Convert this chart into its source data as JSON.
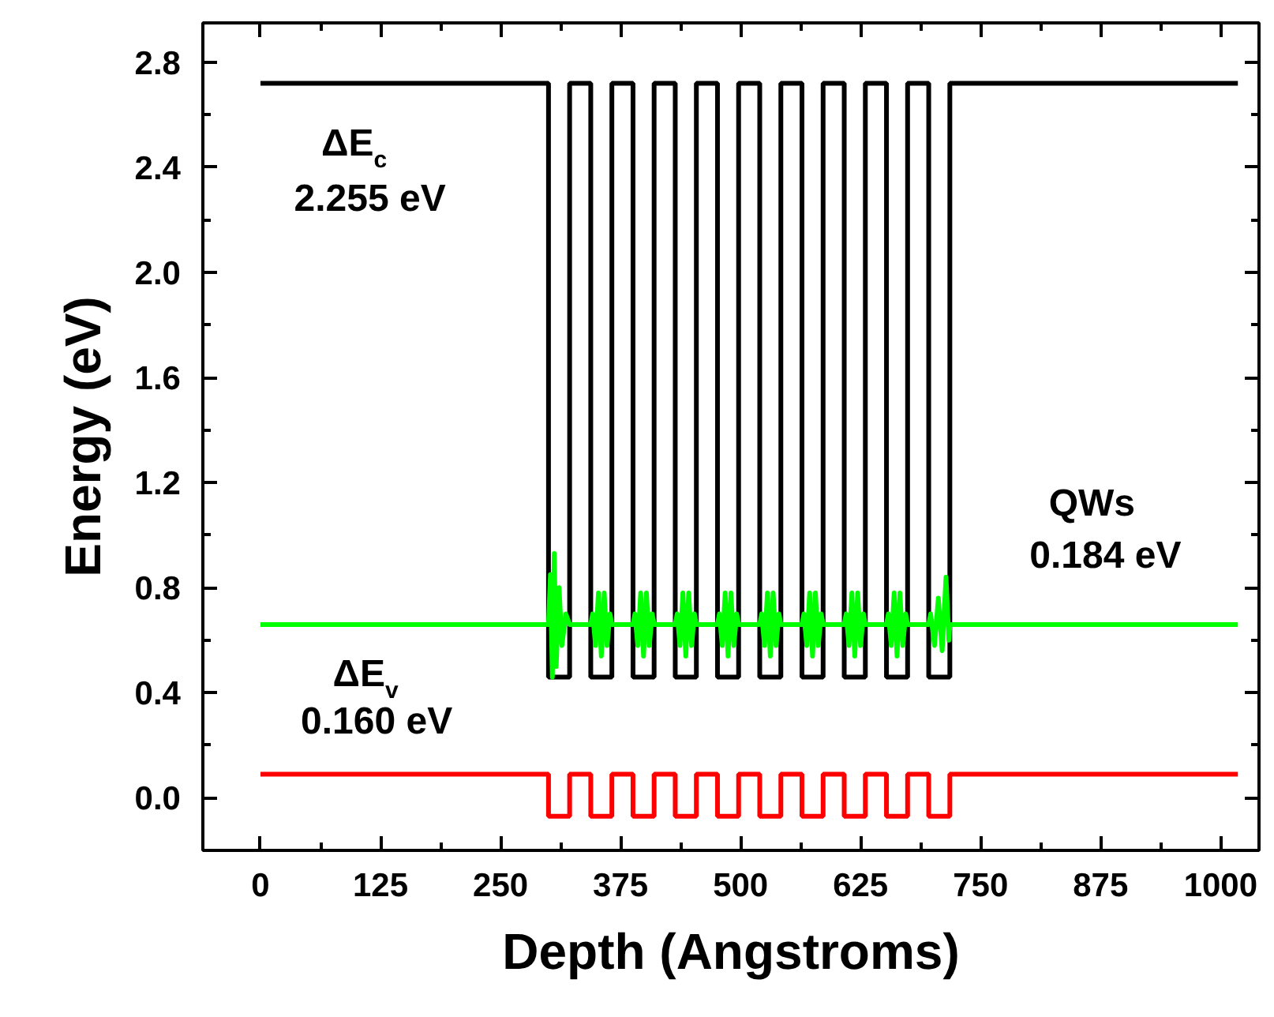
{
  "chart_data": {
    "type": "line",
    "xlabel": "Depth (Angstroms)",
    "ylabel": "Energy (eV)",
    "xlim": [
      -60,
      1040
    ],
    "ylim": [
      -0.2,
      2.95
    ],
    "xticks": [
      0,
      125,
      250,
      375,
      500,
      625,
      750,
      875,
      1000
    ],
    "yticks": [
      {
        "value": 0,
        "label": "0.0"
      },
      0.4,
      0.8,
      1.2,
      1.6,
      {
        "value": 2,
        "label": "2.0"
      },
      2.4,
      2.8
    ],
    "grid": false,
    "series": [
      {
        "type": "step",
        "color": "#000000",
        "x": [
          0,
          300,
          322,
          344,
          366,
          388,
          410,
          432,
          454,
          476,
          498,
          520,
          542,
          564,
          586,
          608,
          630,
          652,
          674,
          696,
          718,
          1018
        ],
        "values": [
          2.72,
          0.46,
          2.72,
          0.46,
          2.72,
          0.46,
          2.72,
          0.46,
          2.72,
          0.46,
          2.72,
          0.46,
          2.72,
          0.46,
          2.72,
          0.46,
          2.72,
          0.46,
          2.72,
          0.46,
          2.72,
          2.72
        ]
      },
      {
        "type": "step",
        "color": "#ff0000",
        "x": [
          0,
          300,
          322,
          344,
          366,
          388,
          410,
          432,
          454,
          476,
          498,
          520,
          542,
          564,
          586,
          608,
          630,
          652,
          674,
          696,
          718,
          1018
        ],
        "values": [
          0.09,
          -0.07,
          0.09,
          -0.07,
          0.09,
          -0.07,
          0.09,
          -0.07,
          0.09,
          -0.07,
          0.09,
          -0.07,
          0.09,
          -0.07,
          0.09,
          -0.07,
          0.09,
          -0.07,
          0.09,
          -0.07,
          0.09,
          0.09
        ]
      },
      {
        "color": "#00ff00",
        "x": [
          0,
          300,
          302,
          304,
          306,
          308,
          311,
          314,
          318,
          322,
          344,
          346,
          349,
          352,
          355,
          358,
          361,
          364,
          366,
          388,
          390,
          393,
          396,
          399,
          402,
          405,
          408,
          410,
          432,
          434,
          437,
          440,
          443,
          446,
          449,
          452,
          454,
          476,
          478,
          481,
          484,
          487,
          490,
          493,
          496,
          498,
          520,
          522,
          525,
          528,
          531,
          534,
          537,
          540,
          542,
          564,
          566,
          569,
          572,
          575,
          578,
          581,
          584,
          586,
          608,
          610,
          613,
          616,
          619,
          622,
          625,
          628,
          630,
          652,
          654,
          657,
          660,
          663,
          666,
          669,
          672,
          674,
          696,
          698,
          702,
          706,
          710,
          714,
          717,
          718,
          1018
        ],
        "values": [
          0.66,
          0.66,
          0.85,
          0.46,
          0.93,
          0.5,
          0.8,
          0.58,
          0.7,
          0.66,
          0.66,
          0.7,
          0.58,
          0.78,
          0.54,
          0.78,
          0.58,
          0.7,
          0.66,
          0.66,
          0.7,
          0.58,
          0.78,
          0.54,
          0.78,
          0.58,
          0.7,
          0.66,
          0.66,
          0.7,
          0.58,
          0.78,
          0.54,
          0.78,
          0.58,
          0.7,
          0.66,
          0.66,
          0.7,
          0.58,
          0.78,
          0.54,
          0.78,
          0.58,
          0.7,
          0.66,
          0.66,
          0.7,
          0.58,
          0.78,
          0.54,
          0.78,
          0.58,
          0.7,
          0.66,
          0.66,
          0.7,
          0.58,
          0.78,
          0.54,
          0.78,
          0.58,
          0.7,
          0.66,
          0.66,
          0.7,
          0.58,
          0.78,
          0.54,
          0.78,
          0.58,
          0.7,
          0.66,
          0.66,
          0.7,
          0.58,
          0.78,
          0.54,
          0.78,
          0.58,
          0.7,
          0.66,
          0.66,
          0.7,
          0.58,
          0.76,
          0.56,
          0.84,
          0.6,
          0.66,
          0.66
        ]
      }
    ],
    "annotations": [
      "ΔE$_{c}$",
      "2.255 eV",
      "ΔE$_{v}$",
      "0.160 eV",
      "QWs",
      "0.184 eV"
    ]
  }
}
